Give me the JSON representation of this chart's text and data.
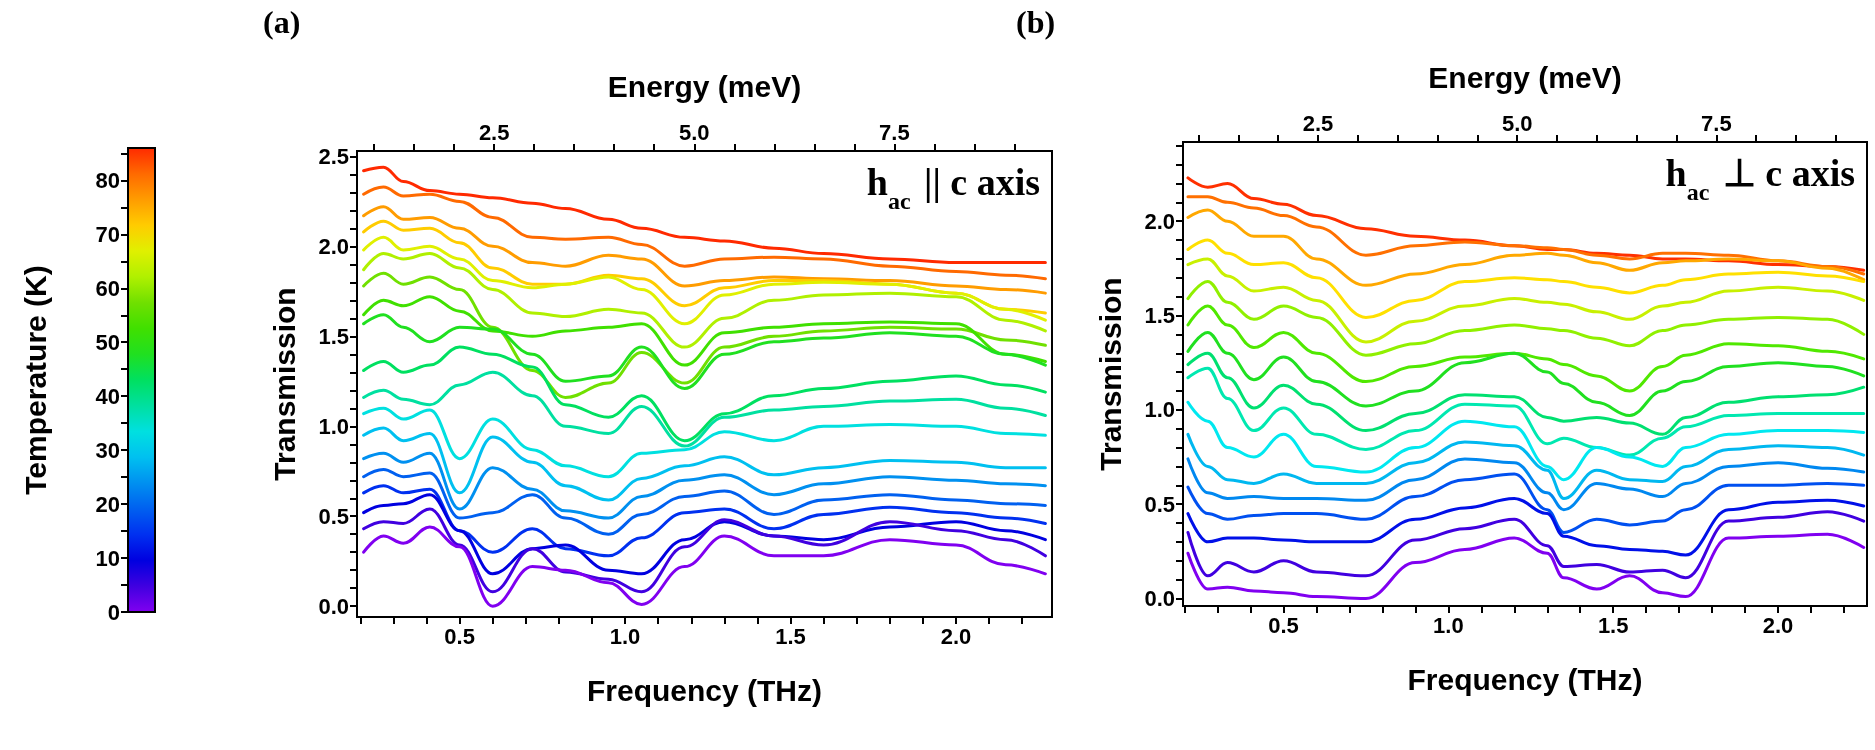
{
  "chart_data": [
    {
      "type": "line",
      "xlabel": "Frequency (THz)",
      "ylabel": "Transmission",
      "x2label": "Energy (meV)",
      "clabel": "Temperature (K)",
      "annotations": [
        "(a)",
        "h$_{ac}$ || c axis"
      ],
      "xlim": [
        0.19,
        2.29
      ],
      "ylim": [
        -0.06,
        2.53
      ],
      "x2lim": [
        0.786,
        9.47
      ],
      "clim": [
        0,
        86
      ],
      "xticks": [
        {
          "value": 0.2,
          "label": null
        },
        {
          "value": 0.3,
          "label": null
        },
        {
          "value": 0.4,
          "label": null
        },
        {
          "value": 0.5,
          "label": "0.5"
        },
        {
          "value": 0.6,
          "label": null
        },
        {
          "value": 0.7,
          "label": null
        },
        {
          "value": 0.8,
          "label": null
        },
        {
          "value": 0.9,
          "label": null
        },
        {
          "value": 1,
          "label": "1.0"
        },
        {
          "value": 1.1,
          "label": null
        },
        {
          "value": 1.2,
          "label": null
        },
        {
          "value": 1.3,
          "label": null
        },
        {
          "value": 1.4,
          "label": null
        },
        {
          "value": 1.5,
          "label": "1.5"
        },
        {
          "value": 1.6,
          "label": null
        },
        {
          "value": 1.7,
          "label": null
        },
        {
          "value": 1.8,
          "label": null
        },
        {
          "value": 1.9,
          "label": null
        },
        {
          "value": 2,
          "label": "2.0"
        },
        {
          "value": 2.1,
          "label": null
        },
        {
          "value": 2.2,
          "label": null
        }
      ],
      "x2ticks": [
        {
          "value": 1,
          "label": null
        },
        {
          "value": 1.5,
          "label": null
        },
        {
          "value": 2,
          "label": null
        },
        {
          "value": 2.5,
          "label": "2.5"
        },
        {
          "value": 3,
          "label": null
        },
        {
          "value": 3.5,
          "label": null
        },
        {
          "value": 4,
          "label": null
        },
        {
          "value": 4.5,
          "label": null
        },
        {
          "value": 5,
          "label": "5.0"
        },
        {
          "value": 5.5,
          "label": null
        },
        {
          "value": 6,
          "label": null
        },
        {
          "value": 6.5,
          "label": null
        },
        {
          "value": 7,
          "label": null
        },
        {
          "value": 7.5,
          "label": "7.5"
        },
        {
          "value": 8,
          "label": null
        },
        {
          "value": 8.5,
          "label": null
        },
        {
          "value": 9,
          "label": null
        }
      ],
      "yticks": [
        {
          "value": 0,
          "label": "0.0"
        },
        {
          "value": 0.1,
          "label": null
        },
        {
          "value": 0.2,
          "label": null
        },
        {
          "value": 0.3,
          "label": null
        },
        {
          "value": 0.4,
          "label": null
        },
        {
          "value": 0.5,
          "label": "0.5"
        },
        {
          "value": 0.6,
          "label": null
        },
        {
          "value": 0.7,
          "label": null
        },
        {
          "value": 0.8,
          "label": null
        },
        {
          "value": 0.9,
          "label": null
        },
        {
          "value": 1,
          "label": "1.0"
        },
        {
          "value": 1.1,
          "label": null
        },
        {
          "value": 1.2,
          "label": null
        },
        {
          "value": 1.3,
          "label": null
        },
        {
          "value": 1.4,
          "label": null
        },
        {
          "value": 1.5,
          "label": "1.5"
        },
        {
          "value": 1.6,
          "label": null
        },
        {
          "value": 1.7,
          "label": null
        },
        {
          "value": 1.8,
          "label": null
        },
        {
          "value": 1.9,
          "label": null
        },
        {
          "value": 2,
          "label": "2.0"
        },
        {
          "value": 2.1,
          "label": null
        },
        {
          "value": 2.2,
          "label": null
        },
        {
          "value": 2.3,
          "label": null
        },
        {
          "value": 2.4,
          "label": null
        },
        {
          "value": 2.5,
          "label": "2.5"
        }
      ],
      "cticks": [
        0,
        {
          "value": 5,
          "label": null
        },
        10,
        {
          "value": 15,
          "label": null
        },
        20,
        {
          "value": 25,
          "label": null
        },
        30,
        {
          "value": 35,
          "label": null
        },
        40,
        {
          "value": 45,
          "label": null
        },
        50,
        {
          "value": 55,
          "label": null
        },
        60,
        {
          "value": 65,
          "label": null
        },
        70,
        {
          "value": 75,
          "label": null
        },
        80,
        {
          "value": 85,
          "label": null
        }
      ],
      "x": [
        0.21,
        0.27,
        0.33,
        0.41,
        0.5,
        0.6,
        0.72,
        0.82,
        0.95,
        1.05,
        1.18,
        1.3,
        1.45,
        1.6,
        1.8,
        2.0,
        2.15,
        2.27
      ],
      "series": [
        {
          "color": "#ff2a00",
          "values": [
            2.42,
            2.44,
            2.36,
            2.31,
            2.29,
            2.27,
            2.24,
            2.21,
            2.15,
            2.1,
            2.05,
            2.03,
            1.99,
            1.96,
            1.93,
            1.91,
            1.91,
            1.91
          ]
        },
        {
          "color": "#ff6a00",
          "values": [
            2.29,
            2.33,
            2.28,
            2.29,
            2.25,
            2.16,
            2.05,
            2.04,
            2.05,
            2.01,
            1.89,
            1.93,
            1.94,
            1.93,
            1.89,
            1.86,
            1.84,
            1.82
          ]
        },
        {
          "color": "#ff9c00",
          "values": [
            2.17,
            2.22,
            2.15,
            2.16,
            2.1,
            2.0,
            1.91,
            1.89,
            1.95,
            1.93,
            1.78,
            1.81,
            1.83,
            1.82,
            1.81,
            1.78,
            1.76,
            1.74
          ]
        },
        {
          "color": "#ffcc00",
          "values": [
            2.08,
            2.14,
            2.09,
            2.1,
            2.02,
            1.88,
            1.79,
            1.79,
            1.84,
            1.82,
            1.67,
            1.77,
            1.81,
            1.81,
            1.79,
            1.74,
            1.65,
            1.63
          ]
        },
        {
          "color": "#e0f000",
          "values": [
            1.98,
            2.05,
            1.98,
            2.0,
            1.93,
            1.81,
            1.77,
            1.79,
            1.83,
            1.76,
            1.57,
            1.73,
            1.79,
            1.8,
            1.79,
            1.74,
            1.65,
            1.59
          ]
        },
        {
          "color": "#b0f000",
          "values": [
            1.87,
            1.96,
            1.93,
            1.96,
            1.88,
            1.76,
            1.63,
            1.61,
            1.65,
            1.63,
            1.44,
            1.6,
            1.7,
            1.73,
            1.74,
            1.72,
            1.59,
            1.53
          ]
        },
        {
          "color": "#70e000",
          "values": [
            1.78,
            1.85,
            1.79,
            1.83,
            1.76,
            1.55,
            1.31,
            1.16,
            1.24,
            1.41,
            1.24,
            1.44,
            1.5,
            1.53,
            1.55,
            1.54,
            1.48,
            1.45
          ]
        },
        {
          "color": "#40e000",
          "values": [
            1.62,
            1.7,
            1.67,
            1.72,
            1.64,
            1.53,
            1.5,
            1.53,
            1.55,
            1.57,
            1.34,
            1.52,
            1.55,
            1.57,
            1.58,
            1.57,
            1.4,
            1.36
          ]
        },
        {
          "color": "#20e020",
          "values": [
            1.57,
            1.62,
            1.55,
            1.47,
            1.55,
            1.54,
            1.4,
            1.25,
            1.28,
            1.44,
            1.21,
            1.4,
            1.47,
            1.49,
            1.52,
            1.5,
            1.4,
            1.34
          ]
        },
        {
          "color": "#00e060",
          "values": [
            1.31,
            1.36,
            1.3,
            1.34,
            1.44,
            1.4,
            1.33,
            1.12,
            1.05,
            1.17,
            0.92,
            1.07,
            1.17,
            1.21,
            1.25,
            1.28,
            1.23,
            1.19
          ]
        },
        {
          "color": "#00e0a0",
          "values": [
            1.16,
            1.2,
            1.15,
            1.12,
            1.23,
            1.3,
            1.17,
            1.0,
            0.96,
            1.11,
            0.89,
            1.05,
            1.09,
            1.11,
            1.14,
            1.15,
            1.1,
            1.06
          ]
        },
        {
          "color": "#00e0e0",
          "values": [
            1.07,
            1.1,
            1.04,
            1.09,
            0.82,
            1.04,
            0.87,
            0.78,
            0.72,
            0.85,
            0.87,
            0.97,
            0.92,
            1.0,
            1.01,
            1.0,
            0.96,
            0.95
          ]
        },
        {
          "color": "#00c0f0",
          "values": [
            0.95,
            0.99,
            0.92,
            0.96,
            0.63,
            0.94,
            0.8,
            0.67,
            0.59,
            0.71,
            0.78,
            0.83,
            0.73,
            0.77,
            0.81,
            0.8,
            0.77,
            0.77
          ]
        },
        {
          "color": "#0090f0",
          "values": [
            0.82,
            0.85,
            0.8,
            0.85,
            0.54,
            0.77,
            0.65,
            0.53,
            0.49,
            0.61,
            0.7,
            0.73,
            0.62,
            0.68,
            0.72,
            0.7,
            0.68,
            0.67
          ]
        },
        {
          "color": "#0060f0",
          "values": [
            0.72,
            0.76,
            0.72,
            0.74,
            0.49,
            0.52,
            0.62,
            0.49,
            0.4,
            0.51,
            0.61,
            0.64,
            0.51,
            0.59,
            0.62,
            0.59,
            0.57,
            0.56
          ]
        },
        {
          "color": "#0030f0",
          "values": [
            0.63,
            0.67,
            0.63,
            0.65,
            0.42,
            0.3,
            0.43,
            0.32,
            0.28,
            0.38,
            0.52,
            0.54,
            0.43,
            0.51,
            0.55,
            0.52,
            0.49,
            0.46
          ]
        },
        {
          "color": "#0000e0",
          "values": [
            0.52,
            0.56,
            0.57,
            0.62,
            0.42,
            0.18,
            0.32,
            0.34,
            0.2,
            0.18,
            0.37,
            0.47,
            0.39,
            0.37,
            0.44,
            0.47,
            0.42,
            0.37
          ]
        },
        {
          "color": "#4000e0",
          "values": [
            0.43,
            0.47,
            0.46,
            0.54,
            0.34,
            0.08,
            0.32,
            0.19,
            0.15,
            0.08,
            0.33,
            0.48,
            0.39,
            0.34,
            0.47,
            0.42,
            0.37,
            0.28
          ]
        },
        {
          "color": "#8000f0",
          "values": [
            0.3,
            0.39,
            0.35,
            0.44,
            0.33,
            0.0,
            0.22,
            0.2,
            0.13,
            0.01,
            0.22,
            0.39,
            0.28,
            0.28,
            0.37,
            0.34,
            0.23,
            0.18
          ]
        }
      ]
    },
    {
      "type": "line",
      "xlabel": "Frequency (THz)",
      "ylabel": "Transmission",
      "x2label": "Energy (meV)",
      "annotations": [
        "(b)",
        "h$_{ac}$ ⊥ c axis"
      ],
      "xlim": [
        0.195,
        2.27
      ],
      "ylim": [
        -0.04,
        2.42
      ],
      "x2lim": [
        0.806,
        9.39
      ],
      "xticks": [
        {
          "value": 0.2,
          "label": null
        },
        {
          "value": 0.3,
          "label": null
        },
        {
          "value": 0.4,
          "label": null
        },
        {
          "value": 0.5,
          "label": "0.5"
        },
        {
          "value": 0.6,
          "label": null
        },
        {
          "value": 0.7,
          "label": null
        },
        {
          "value": 0.8,
          "label": null
        },
        {
          "value": 0.9,
          "label": null
        },
        {
          "value": 1,
          "label": "1.0"
        },
        {
          "value": 1.1,
          "label": null
        },
        {
          "value": 1.2,
          "label": null
        },
        {
          "value": 1.3,
          "label": null
        },
        {
          "value": 1.4,
          "label": null
        },
        {
          "value": 1.5,
          "label": "1.5"
        },
        {
          "value": 1.6,
          "label": null
        },
        {
          "value": 1.7,
          "label": null
        },
        {
          "value": 1.8,
          "label": null
        },
        {
          "value": 1.9,
          "label": null
        },
        {
          "value": 2,
          "label": "2.0"
        },
        {
          "value": 2.1,
          "label": null
        },
        {
          "value": 2.2,
          "label": null
        }
      ],
      "x2ticks": [
        {
          "value": 1,
          "label": null
        },
        {
          "value": 1.5,
          "label": null
        },
        {
          "value": 2,
          "label": null
        },
        2.5,
        {
          "value": 3,
          "label": null
        },
        {
          "value": 3.5,
          "label": null
        },
        {
          "value": 4,
          "label": null
        },
        {
          "value": 4.5,
          "label": null
        },
        {
          "value": 5,
          "label": "5.0"
        },
        {
          "value": 5.5,
          "label": null
        },
        {
          "value": 6,
          "label": null
        },
        {
          "value": 6.5,
          "label": null
        },
        {
          "value": 7,
          "label": null
        },
        7.5,
        {
          "value": 8,
          "label": null
        },
        {
          "value": 8.5,
          "label": null
        },
        {
          "value": 9,
          "label": null
        }
      ],
      "yticks": [
        {
          "value": 0,
          "label": "0.0"
        },
        {
          "value": 0.1,
          "label": null
        },
        {
          "value": 0.2,
          "label": null
        },
        {
          "value": 0.3,
          "label": null
        },
        {
          "value": 0.4,
          "label": null
        },
        0.5,
        {
          "value": 0.6,
          "label": null
        },
        {
          "value": 0.7,
          "label": null
        },
        {
          "value": 0.8,
          "label": null
        },
        {
          "value": 0.9,
          "label": null
        },
        {
          "value": 1,
          "label": "1.0"
        },
        {
          "value": 1.1,
          "label": null
        },
        {
          "value": 1.2,
          "label": null
        },
        {
          "value": 1.3,
          "label": null
        },
        {
          "value": 1.4,
          "label": null
        },
        1.5,
        {
          "value": 1.6,
          "label": null
        },
        {
          "value": 1.7,
          "label": null
        },
        {
          "value": 1.8,
          "label": null
        },
        {
          "value": 1.9,
          "label": null
        },
        {
          "value": 2,
          "label": "2.0"
        },
        {
          "value": 2.1,
          "label": null
        },
        {
          "value": 2.2,
          "label": null
        },
        {
          "value": 2.3,
          "label": null
        },
        {
          "value": 2.4,
          "label": null
        }
      ],
      "x": [
        0.21,
        0.27,
        0.33,
        0.41,
        0.5,
        0.6,
        0.75,
        0.9,
        1.05,
        1.2,
        1.3,
        1.35,
        1.45,
        1.55,
        1.65,
        1.72,
        1.85,
        2.0,
        2.15,
        2.26
      ],
      "series": [
        {
          "color": "#ff3000",
          "values": [
            2.23,
            2.18,
            2.2,
            2.12,
            2.09,
            2.03,
            1.96,
            1.92,
            1.9,
            1.87,
            1.85,
            1.85,
            1.83,
            1.82,
            1.8,
            1.8,
            1.79,
            1.77,
            1.76,
            1.74
          ]
        },
        {
          "color": "#ff7000",
          "values": [
            2.13,
            2.13,
            2.1,
            2.07,
            2.03,
            1.97,
            1.82,
            1.87,
            1.89,
            1.87,
            1.86,
            1.85,
            1.82,
            1.8,
            1.83,
            1.83,
            1.82,
            1.79,
            1.76,
            1.72
          ]
        },
        {
          "color": "#ffa800",
          "values": [
            2.02,
            2.06,
            2.0,
            1.92,
            1.92,
            1.8,
            1.66,
            1.72,
            1.77,
            1.82,
            1.83,
            1.82,
            1.78,
            1.74,
            1.78,
            1.79,
            1.8,
            1.79,
            1.75,
            1.69
          ]
        },
        {
          "color": "#ffe000",
          "values": [
            1.85,
            1.9,
            1.83,
            1.77,
            1.78,
            1.7,
            1.49,
            1.58,
            1.68,
            1.7,
            1.69,
            1.68,
            1.65,
            1.62,
            1.66,
            1.69,
            1.72,
            1.73,
            1.71,
            1.68
          ]
        },
        {
          "color": "#c8f000",
          "values": [
            1.77,
            1.8,
            1.71,
            1.63,
            1.65,
            1.58,
            1.36,
            1.47,
            1.55,
            1.59,
            1.57,
            1.56,
            1.52,
            1.48,
            1.55,
            1.57,
            1.63,
            1.65,
            1.63,
            1.58
          ]
        },
        {
          "color": "#90f000",
          "values": [
            1.59,
            1.68,
            1.57,
            1.48,
            1.55,
            1.49,
            1.29,
            1.35,
            1.42,
            1.45,
            1.43,
            1.42,
            1.38,
            1.34,
            1.42,
            1.45,
            1.48,
            1.49,
            1.48,
            1.4
          ]
        },
        {
          "color": "#50e800",
          "values": [
            1.45,
            1.55,
            1.45,
            1.33,
            1.41,
            1.3,
            1.15,
            1.23,
            1.28,
            1.3,
            1.27,
            1.24,
            1.18,
            1.1,
            1.23,
            1.29,
            1.35,
            1.34,
            1.31,
            1.27
          ]
        },
        {
          "color": "#20e020",
          "values": [
            1.31,
            1.41,
            1.3,
            1.16,
            1.28,
            1.15,
            1.02,
            1.1,
            1.25,
            1.3,
            1.2,
            1.14,
            1.04,
            0.97,
            1.1,
            1.15,
            1.23,
            1.25,
            1.23,
            1.18
          ]
        },
        {
          "color": "#00e070",
          "values": [
            1.24,
            1.3,
            1.17,
            1.01,
            1.13,
            1.03,
            0.89,
            0.98,
            1.08,
            1.07,
            0.96,
            0.94,
            0.96,
            0.93,
            0.87,
            0.96,
            1.04,
            1.07,
            1.08,
            1.12
          ]
        },
        {
          "color": "#00e8b0",
          "values": [
            1.17,
            1.22,
            1.06,
            0.89,
            1.01,
            0.87,
            0.79,
            0.89,
            1.03,
            1.02,
            0.82,
            0.85,
            0.8,
            0.76,
            0.85,
            0.91,
            0.97,
            0.98,
            0.98,
            0.98
          ]
        },
        {
          "color": "#00e8f0",
          "values": [
            1.04,
            0.94,
            0.8,
            0.75,
            0.87,
            0.7,
            0.67,
            0.8,
            0.94,
            0.91,
            0.7,
            0.63,
            0.8,
            0.75,
            0.7,
            0.8,
            0.87,
            0.89,
            0.89,
            0.88
          ]
        },
        {
          "color": "#00b8f0",
          "values": [
            0.87,
            0.7,
            0.63,
            0.61,
            0.66,
            0.61,
            0.61,
            0.72,
            0.83,
            0.81,
            0.68,
            0.53,
            0.68,
            0.63,
            0.62,
            0.7,
            0.79,
            0.81,
            0.8,
            0.76
          ]
        },
        {
          "color": "#0088f0",
          "values": [
            0.74,
            0.56,
            0.53,
            0.54,
            0.53,
            0.53,
            0.52,
            0.63,
            0.74,
            0.72,
            0.56,
            0.47,
            0.61,
            0.58,
            0.54,
            0.61,
            0.7,
            0.72,
            0.69,
            0.67
          ]
        },
        {
          "color": "#0050f0",
          "values": [
            0.59,
            0.45,
            0.42,
            0.44,
            0.45,
            0.45,
            0.42,
            0.54,
            0.63,
            0.66,
            0.47,
            0.35,
            0.42,
            0.39,
            0.41,
            0.47,
            0.6,
            0.6,
            0.61,
            0.6
          ]
        },
        {
          "color": "#0010e8",
          "values": [
            0.45,
            0.3,
            0.32,
            0.32,
            0.31,
            0.3,
            0.3,
            0.42,
            0.48,
            0.53,
            0.45,
            0.33,
            0.28,
            0.26,
            0.25,
            0.23,
            0.47,
            0.51,
            0.52,
            0.49
          ]
        },
        {
          "color": "#4000e0",
          "values": [
            0.35,
            0.12,
            0.19,
            0.14,
            0.2,
            0.14,
            0.12,
            0.31,
            0.37,
            0.42,
            0.28,
            0.17,
            0.18,
            0.14,
            0.15,
            0.11,
            0.41,
            0.43,
            0.46,
            0.41
          ]
        },
        {
          "color": "#8000f0",
          "values": [
            0.24,
            0.05,
            0.06,
            0.04,
            0.03,
            0.01,
            0.0,
            0.19,
            0.26,
            0.32,
            0.24,
            0.11,
            0.05,
            0.12,
            0.03,
            0.01,
            0.32,
            0.33,
            0.34,
            0.27
          ]
        }
      ]
    }
  ]
}
